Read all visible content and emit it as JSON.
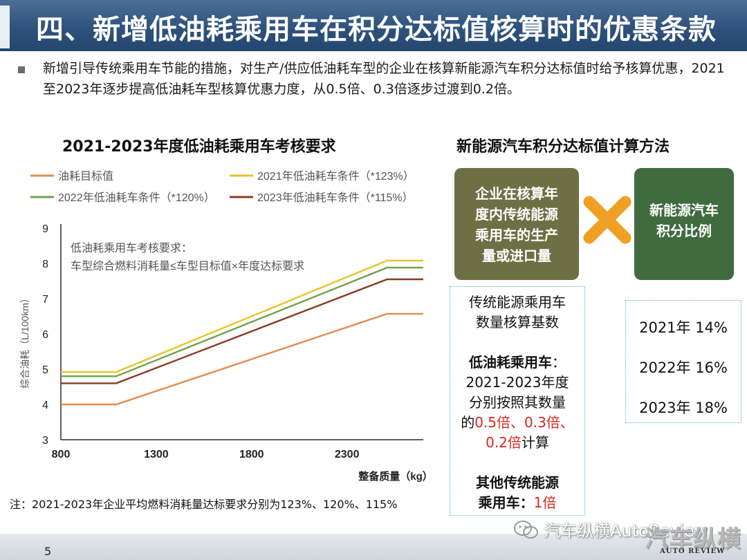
{
  "header": {
    "title": "四、新增低油耗乘用车在积分达标值核算时的优惠条款"
  },
  "intro": {
    "text": "新增引导传统乘用车节能的措施，对生产/供应低油耗车型的企业在核算新能源汽车积分达标值时给予核算优惠，2021至2023年逐步提高低油耗车型核算优惠力度，从0.5倍、0.3倍逐步过渡到0.2倍。"
  },
  "chart_data": {
    "type": "line",
    "title": "2021-2023年度低油耗乘用车考核要求",
    "xlabel": "整备质量（kg）",
    "ylabel": "综合油耗（L/100km）",
    "xlim": [
      800,
      2700
    ],
    "ylim": [
      3,
      9
    ],
    "xticks": [
      "800",
      "1300",
      "1800",
      "2300"
    ],
    "yticks": [
      "3",
      "4",
      "5",
      "6",
      "7",
      "8",
      "9"
    ],
    "grid": false,
    "legend_position": "top",
    "annotation": [
      "低油耗乘用车考核要求：",
      "车型综合燃料消耗量≤车型目标值×年度达标要求"
    ],
    "x": [
      800,
      1090,
      2510,
      2700
    ],
    "series": [
      {
        "name": "油耗目标值",
        "color": "#e08a4d",
        "values": [
          4.0,
          4.0,
          6.57,
          6.57
        ]
      },
      {
        "name": "2021年低油耗车条件（*123%）",
        "color": "#e8c325",
        "values": [
          4.92,
          4.92,
          8.08,
          8.08
        ]
      },
      {
        "name": "2022年低油耗车条件（*120%）",
        "color": "#6fa34a",
        "values": [
          4.8,
          4.8,
          7.88,
          7.88
        ]
      },
      {
        "name": "2023年低油耗车条件（*115%）",
        "color": "#8b3a22",
        "values": [
          4.6,
          4.6,
          7.55,
          7.55
        ]
      }
    ]
  },
  "note": "注：2021-2023年企业平均燃料消耗量达标要求分别为123%、120%、115%",
  "right": {
    "title": "新能源汽车积分达标值计算方法",
    "box_left": [
      "企业在核算年",
      "度内传统能源",
      "乘用车的生产",
      "量或进口量"
    ],
    "box_right": [
      "新能源汽车",
      "积分比例"
    ],
    "operator_icon": "multiply-icon",
    "basis": {
      "line1": "传统能源乘用车",
      "line2": "数量核算基数",
      "low_title": "低油耗乘用车",
      "low_colon": "：",
      "low_line2": "2021-2023年度",
      "low_line3": "分别按照其数量",
      "low_de": "的",
      "low_red1": "0.5倍、0.3倍、",
      "low_red2": "0.2倍",
      "low_tail": "计算",
      "other_line1": "其他传统能源",
      "other_title": "乘用车：",
      "other_red": "1倍"
    },
    "ratios": [
      "2021年 14%",
      "2022年 16%",
      "2023年 18%"
    ]
  },
  "footer": {
    "page": "5",
    "watermark": "汽车纵横AutoReview",
    "logo_cn": "汽车纵横",
    "logo_en": "AUTO REVIEW",
    "accent_colors": {
      "title_bar": "#2e527c",
      "olive": "#6e6f44",
      "green": "#3f6b3f",
      "cross": "#f0a024",
      "red": "#d9261c"
    }
  }
}
